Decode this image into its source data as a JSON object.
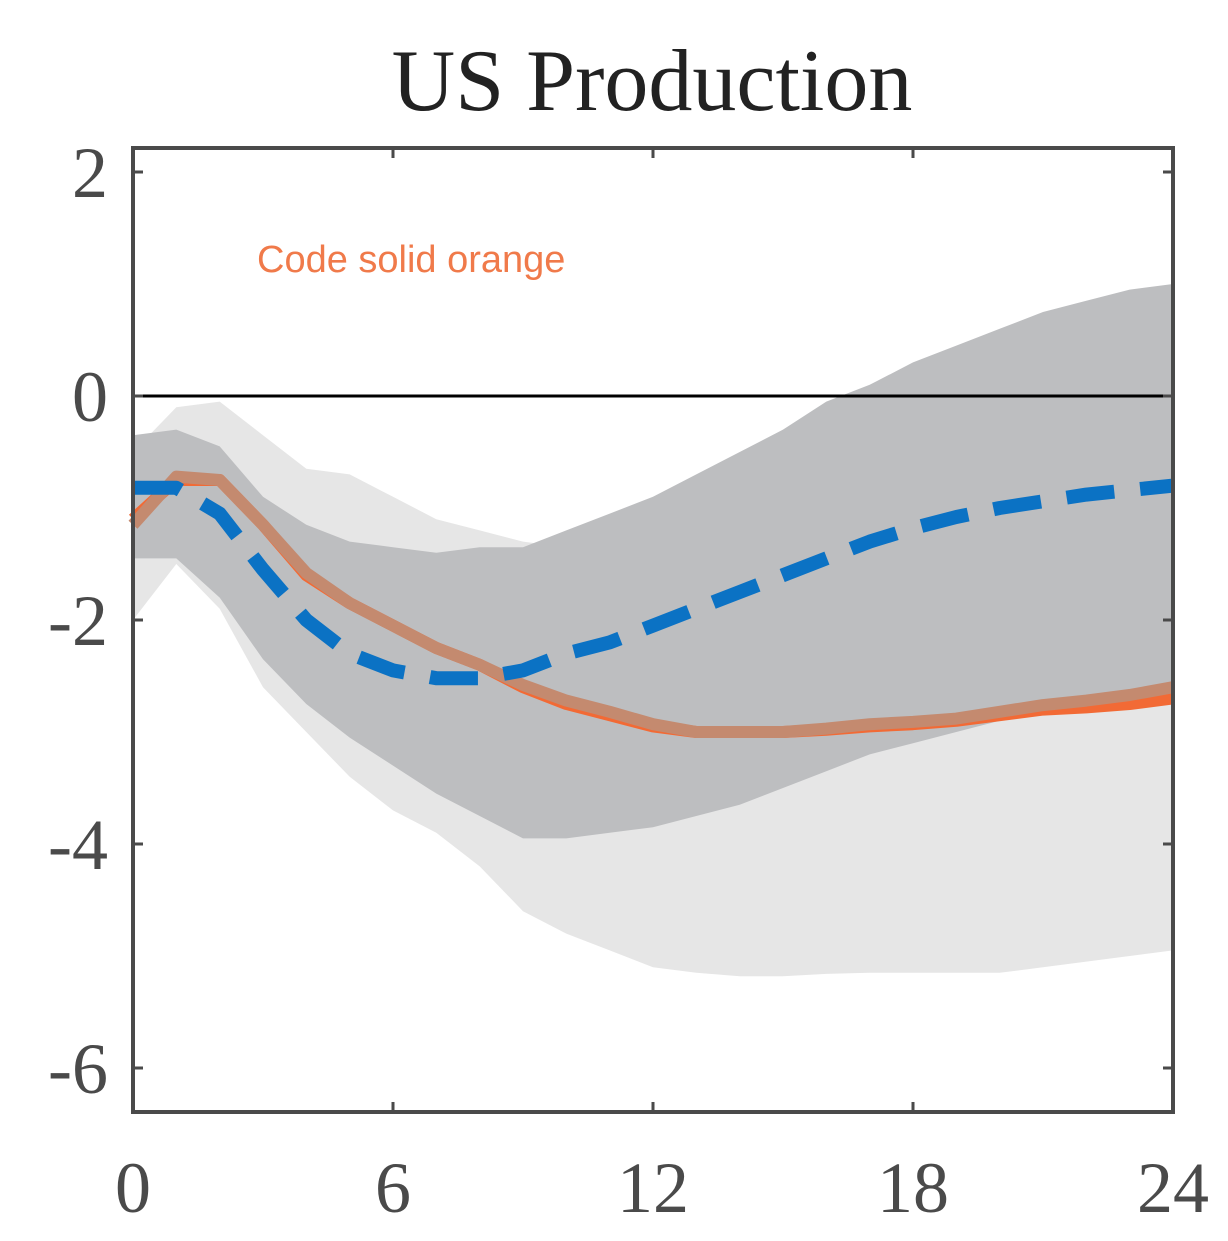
{
  "chart_data": {
    "type": "line",
    "title": "US Production",
    "xlabel": "",
    "ylabel": "",
    "xlim": [
      0,
      24
    ],
    "ylim": [
      -6.4,
      2.2
    ],
    "x_ticks": [
      0,
      6,
      12,
      18,
      24
    ],
    "x_tick_labels": [
      "0",
      "6",
      "12",
      "18",
      "24"
    ],
    "y_ticks": [
      2,
      0,
      -2,
      -4,
      -6
    ],
    "y_tick_labels": [
      "2",
      "0",
      "-2",
      "-4",
      "-6"
    ],
    "zero_line": 0,
    "grid": false,
    "annotation": {
      "text": "Code solid orange",
      "color": "#f07a4a"
    },
    "colors": {
      "light_band": "#e6e6e6",
      "dark_band": "#bdbec0",
      "orange_line": "#f26a35",
      "muted_line": "#c48a6f",
      "dashed_line": "#0b72c4",
      "axis": "#4a4a4a"
    },
    "bands": [
      {
        "style": "light",
        "x": [
          0,
          1,
          2,
          3,
          4,
          5,
          6,
          7,
          8,
          9,
          10,
          11,
          12,
          13,
          14,
          15,
          16,
          17,
          18,
          19,
          20,
          21,
          22,
          23,
          24
        ],
        "upper": [
          -0.5,
          -0.1,
          -0.05,
          -0.35,
          -0.65,
          -0.7,
          -0.9,
          -1.1,
          -1.2,
          -1.3,
          -1.35,
          -1.35,
          -1.35,
          -1.33,
          -1.31,
          -1.3,
          -1.25,
          -1.2,
          -1.15,
          -1.05,
          -1.0,
          -0.95,
          -0.9,
          -0.85,
          -0.8
        ],
        "lower": [
          -2.0,
          -1.5,
          -1.9,
          -2.6,
          -3.0,
          -3.4,
          -3.7,
          -3.9,
          -4.2,
          -4.6,
          -4.8,
          -4.95,
          -5.1,
          -5.15,
          -5.18,
          -5.18,
          -5.16,
          -5.15,
          -5.15,
          -5.15,
          -5.15,
          -5.1,
          -5.05,
          -5.0,
          -4.95
        ]
      },
      {
        "style": "dark",
        "x": [
          0,
          1,
          2,
          3,
          4,
          5,
          6,
          7,
          8,
          9,
          10,
          11,
          12,
          13,
          14,
          15,
          16,
          17,
          18,
          19,
          20,
          21,
          22,
          23,
          24
        ],
        "upper": [
          -0.35,
          -0.3,
          -0.45,
          -0.9,
          -1.15,
          -1.3,
          -1.35,
          -1.4,
          -1.35,
          -1.35,
          -1.2,
          -1.05,
          -0.9,
          -0.7,
          -0.5,
          -0.3,
          -0.05,
          0.1,
          0.3,
          0.45,
          0.6,
          0.75,
          0.85,
          0.95,
          1.0
        ],
        "lower": [
          -1.45,
          -1.45,
          -1.8,
          -2.35,
          -2.75,
          -3.05,
          -3.3,
          -3.55,
          -3.75,
          -3.95,
          -3.95,
          -3.9,
          -3.85,
          -3.75,
          -3.65,
          -3.5,
          -3.35,
          -3.2,
          -3.1,
          -3.0,
          -2.9,
          -2.85,
          -2.75,
          -2.7,
          -2.6
        ]
      }
    ],
    "series": [
      {
        "style": "solid-orange",
        "x": [
          0,
          1,
          2,
          3,
          4,
          5,
          6,
          7,
          8,
          9,
          10,
          11,
          12,
          13,
          14,
          15,
          16,
          17,
          18,
          19,
          20,
          21,
          22,
          23,
          24
        ],
        "y": [
          -1.1,
          -0.75,
          -0.75,
          -1.15,
          -1.6,
          -1.85,
          -2.05,
          -2.25,
          -2.4,
          -2.6,
          -2.75,
          -2.85,
          -2.95,
          -3.0,
          -3.0,
          -3.0,
          -2.98,
          -2.95,
          -2.93,
          -2.9,
          -2.85,
          -2.8,
          -2.78,
          -2.75,
          -2.7
        ]
      },
      {
        "style": "solid-muted",
        "x": [
          0,
          1,
          2,
          3,
          4,
          5,
          6,
          7,
          8,
          9,
          10,
          11,
          12,
          13,
          14,
          15,
          16,
          17,
          18,
          19,
          20,
          21,
          22,
          23,
          24
        ],
        "y": [
          -1.15,
          -0.72,
          -0.75,
          -1.15,
          -1.58,
          -1.85,
          -2.05,
          -2.25,
          -2.4,
          -2.58,
          -2.72,
          -2.82,
          -2.93,
          -3.0,
          -3.0,
          -3.0,
          -2.97,
          -2.93,
          -2.91,
          -2.88,
          -2.82,
          -2.76,
          -2.72,
          -2.67,
          -2.6
        ]
      },
      {
        "style": "dashed-blue",
        "x": [
          0,
          1,
          2,
          3,
          4,
          5,
          6,
          7,
          8,
          9,
          10,
          11,
          12,
          13,
          14,
          15,
          16,
          17,
          18,
          19,
          20,
          21,
          22,
          23,
          24
        ],
        "y": [
          -0.82,
          -0.82,
          -1.05,
          -1.55,
          -2.0,
          -2.3,
          -2.45,
          -2.52,
          -2.52,
          -2.45,
          -2.3,
          -2.2,
          -2.05,
          -1.9,
          -1.75,
          -1.6,
          -1.45,
          -1.3,
          -1.18,
          -1.08,
          -1.0,
          -0.94,
          -0.88,
          -0.84,
          -0.8
        ]
      }
    ]
  }
}
